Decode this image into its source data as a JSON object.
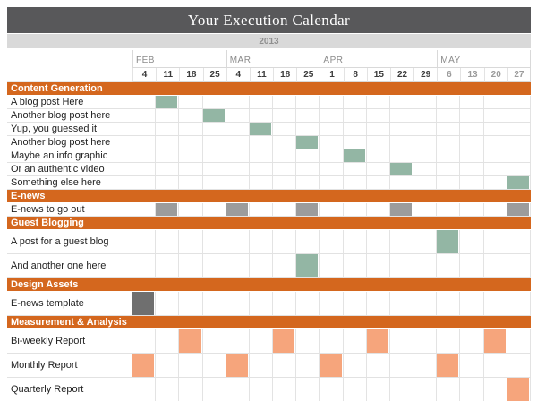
{
  "title": "Your Execution Calendar",
  "year": "2013",
  "months": [
    {
      "label": "FEB",
      "weeks": 4,
      "muted": false
    },
    {
      "label": "MAR",
      "weeks": 4,
      "muted": false
    },
    {
      "label": "APR",
      "weeks": 5,
      "muted": false
    },
    {
      "label": "MAY",
      "weeks": 4,
      "muted": true
    }
  ],
  "week_dates": [
    "4",
    "11",
    "18",
    "25",
    "4",
    "11",
    "18",
    "25",
    "1",
    "8",
    "15",
    "22",
    "29",
    "6",
    "13",
    "20",
    "27"
  ],
  "colors": {
    "section_header_bg": "#d4671e",
    "green_cell": "#93b6a4",
    "gray_cell": "#9c9c9c",
    "dark_gray_cell": "#6f6f6f",
    "salmon_cell": "#f6a57c",
    "title_bar_bg": "#58585a",
    "year_band_bg": "#d9d9d9"
  },
  "sections": [
    {
      "title": "Content Generation",
      "rows": [
        {
          "label": "A blog post Here",
          "tall": false,
          "cells": [
            {
              "col": 1,
              "color": "green_cell"
            }
          ]
        },
        {
          "label": "Another blog post here",
          "tall": false,
          "cells": [
            {
              "col": 3,
              "color": "green_cell"
            }
          ]
        },
        {
          "label": "Yup, you guessed it",
          "tall": false,
          "cells": [
            {
              "col": 5,
              "color": "green_cell"
            }
          ]
        },
        {
          "label": "Another blog post here",
          "tall": false,
          "cells": [
            {
              "col": 7,
              "color": "green_cell"
            }
          ]
        },
        {
          "label": "Maybe an info graphic",
          "tall": false,
          "cells": [
            {
              "col": 9,
              "color": "green_cell"
            }
          ]
        },
        {
          "label": "Or an authentic video",
          "tall": false,
          "cells": [
            {
              "col": 11,
              "color": "green_cell"
            }
          ]
        },
        {
          "label": "Something else here",
          "tall": false,
          "cells": [
            {
              "col": 16,
              "color": "green_cell"
            }
          ]
        }
      ]
    },
    {
      "title": "E-news",
      "rows": [
        {
          "label": "E-news to go out",
          "tall": false,
          "cells": [
            {
              "col": 1,
              "color": "gray_cell"
            },
            {
              "col": 4,
              "color": "gray_cell"
            },
            {
              "col": 7,
              "color": "gray_cell"
            },
            {
              "col": 11,
              "color": "gray_cell"
            },
            {
              "col": 16,
              "color": "gray_cell"
            }
          ]
        }
      ]
    },
    {
      "title": "Guest Blogging",
      "rows": [
        {
          "label": "A post for a guest blog",
          "tall": true,
          "cells": [
            {
              "col": 13,
              "color": "green_cell"
            }
          ]
        },
        {
          "label": "And another one here",
          "tall": true,
          "cells": [
            {
              "col": 7,
              "color": "green_cell"
            }
          ]
        }
      ]
    },
    {
      "title": "Design Assets",
      "rows": [
        {
          "label": "E-news template",
          "tall": true,
          "cells": [
            {
              "col": 0,
              "color": "dark_gray_cell"
            }
          ]
        }
      ]
    },
    {
      "title": "Measurement & Analysis",
      "rows": [
        {
          "label": "Bi-weekly Report",
          "tall": true,
          "cells": [
            {
              "col": 2,
              "color": "salmon_cell"
            },
            {
              "col": 6,
              "color": "salmon_cell"
            },
            {
              "col": 10,
              "color": "salmon_cell"
            },
            {
              "col": 15,
              "color": "salmon_cell"
            }
          ]
        },
        {
          "label": "Monthly Report",
          "tall": true,
          "cells": [
            {
              "col": 0,
              "color": "salmon_cell"
            },
            {
              "col": 4,
              "color": "salmon_cell"
            },
            {
              "col": 8,
              "color": "salmon_cell"
            },
            {
              "col": 13,
              "color": "salmon_cell"
            }
          ]
        },
        {
          "label": "Quarterly Report",
          "tall": true,
          "cells": [
            {
              "col": 16,
              "color": "salmon_cell"
            }
          ]
        }
      ]
    }
  ],
  "chart_data": {
    "type": "table",
    "title": "Your Execution Calendar",
    "year": "2013",
    "columns": [
      "Feb 4",
      "Feb 11",
      "Feb 18",
      "Feb 25",
      "Mar 4",
      "Mar 11",
      "Mar 18",
      "Mar 25",
      "Apr 1",
      "Apr 8",
      "Apr 15",
      "Apr 22",
      "Apr 29",
      "May 6",
      "May 13",
      "May 20",
      "May 27"
    ],
    "rows": [
      {
        "section": "Content Generation",
        "task": "A blog post Here",
        "scheduled": [
          "Feb 11"
        ],
        "color": "#93b6a4"
      },
      {
        "section": "Content Generation",
        "task": "Another blog post here",
        "scheduled": [
          "Feb 25"
        ],
        "color": "#93b6a4"
      },
      {
        "section": "Content Generation",
        "task": "Yup, you guessed it",
        "scheduled": [
          "Mar 11"
        ],
        "color": "#93b6a4"
      },
      {
        "section": "Content Generation",
        "task": "Another blog post here",
        "scheduled": [
          "Mar 25"
        ],
        "color": "#93b6a4"
      },
      {
        "section": "Content Generation",
        "task": "Maybe an info graphic",
        "scheduled": [
          "Apr 8"
        ],
        "color": "#93b6a4"
      },
      {
        "section": "Content Generation",
        "task": "Or an authentic video",
        "scheduled": [
          "Apr 22"
        ],
        "color": "#93b6a4"
      },
      {
        "section": "Content Generation",
        "task": "Something else here",
        "scheduled": [
          "May 27"
        ],
        "color": "#93b6a4"
      },
      {
        "section": "E-news",
        "task": "E-news to go out",
        "scheduled": [
          "Feb 11",
          "Mar 4",
          "Mar 25",
          "Apr 22",
          "May 27"
        ],
        "color": "#9c9c9c"
      },
      {
        "section": "Guest Blogging",
        "task": "A post for a guest blog",
        "scheduled": [
          "May 6"
        ],
        "color": "#93b6a4"
      },
      {
        "section": "Guest Blogging",
        "task": "And another one here",
        "scheduled": [
          "Mar 25"
        ],
        "color": "#93b6a4"
      },
      {
        "section": "Design Assets",
        "task": "E-news template",
        "scheduled": [
          "Feb 4"
        ],
        "color": "#6f6f6f"
      },
      {
        "section": "Measurement & Analysis",
        "task": "Bi-weekly Report",
        "scheduled": [
          "Feb 18",
          "Mar 18",
          "Apr 15",
          "May 20"
        ],
        "color": "#f6a57c"
      },
      {
        "section": "Measurement & Analysis",
        "task": "Monthly Report",
        "scheduled": [
          "Feb 4",
          "Mar 4",
          "Apr 1",
          "May 6"
        ],
        "color": "#f6a57c"
      },
      {
        "section": "Measurement & Analysis",
        "task": "Quarterly Report",
        "scheduled": [
          "May 27"
        ],
        "color": "#f6a57c"
      }
    ],
    "legend_position": "none",
    "grid": true
  }
}
